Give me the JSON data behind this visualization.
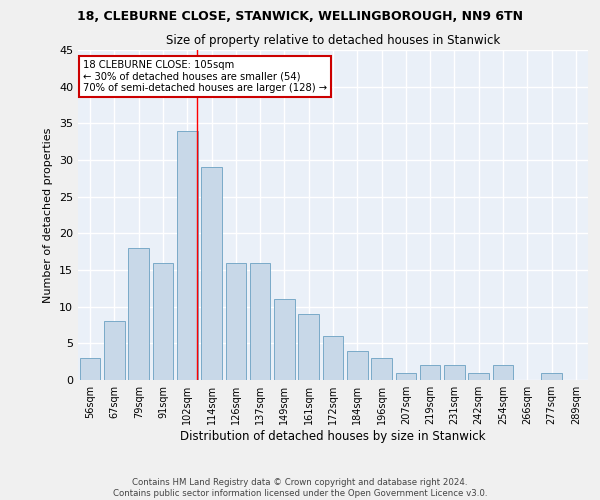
{
  "title1": "18, CLEBURNE CLOSE, STANWICK, WELLINGBOROUGH, NN9 6TN",
  "title2": "Size of property relative to detached houses in Stanwick",
  "xlabel": "Distribution of detached houses by size in Stanwick",
  "ylabel": "Number of detached properties",
  "bar_labels": [
    "56sqm",
    "67sqm",
    "79sqm",
    "91sqm",
    "102sqm",
    "114sqm",
    "126sqm",
    "137sqm",
    "149sqm",
    "161sqm",
    "172sqm",
    "184sqm",
    "196sqm",
    "207sqm",
    "219sqm",
    "231sqm",
    "242sqm",
    "254sqm",
    "266sqm",
    "277sqm",
    "289sqm"
  ],
  "bar_values": [
    3,
    8,
    18,
    16,
    34,
    29,
    16,
    16,
    11,
    9,
    6,
    4,
    3,
    1,
    2,
    2,
    1,
    2,
    0,
    1,
    0
  ],
  "bar_color": "#c8d8e8",
  "bar_edge_color": "#7aaac8",
  "ylim": [
    0,
    45
  ],
  "yticks": [
    0,
    5,
    10,
    15,
    20,
    25,
    30,
    35,
    40,
    45
  ],
  "property_label": "18 CLEBURNE CLOSE: 105sqm",
  "annotation_line1": "← 30% of detached houses are smaller (54)",
  "annotation_line2": "70% of semi-detached houses are larger (128) →",
  "vline_pos": 4.42,
  "background_color": "#eaf0f8",
  "grid_color": "#ffffff",
  "annotation_box_color": "#ffffff",
  "annotation_box_edge_color": "#cc0000",
  "footer_line1": "Contains HM Land Registry data © Crown copyright and database right 2024.",
  "footer_line2": "Contains public sector information licensed under the Open Government Licence v3.0."
}
